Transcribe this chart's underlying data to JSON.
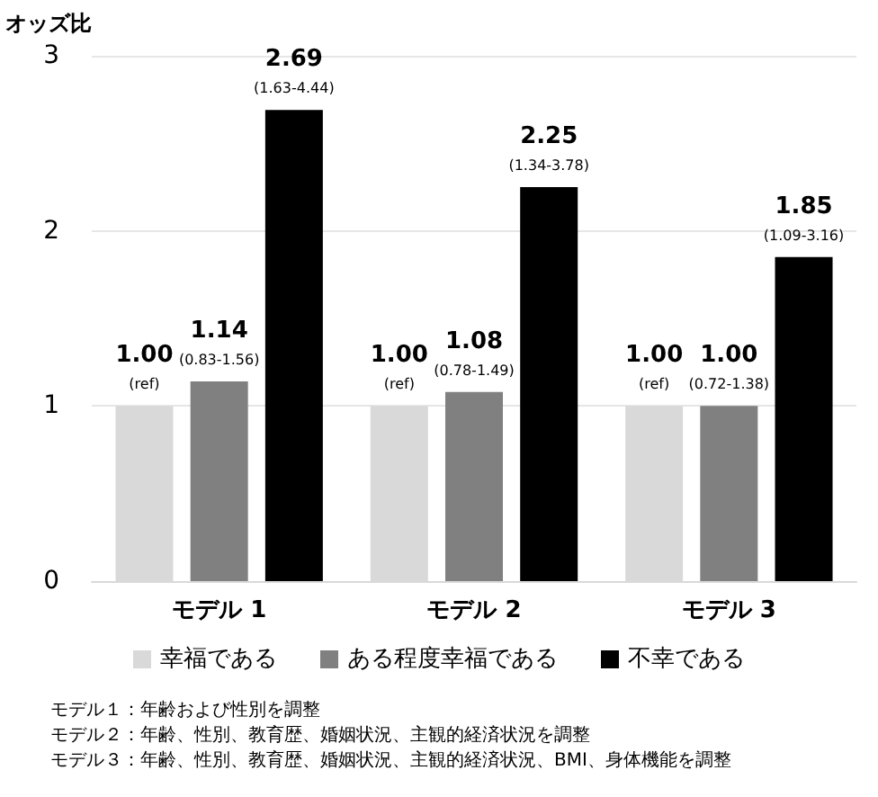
{
  "chart_data": {
    "type": "bar",
    "ylabel": "オッズ比",
    "categories": [
      "モデル 1",
      "モデル 2",
      "モデル 3"
    ],
    "series": [
      {
        "name": "幸福である",
        "color": "#d9d9d9",
        "values": [
          1.0,
          1.0,
          1.0
        ],
        "value_labels": [
          "1.00\n(ref)",
          "1.00\n(ref)",
          "1.00\n(ref)"
        ]
      },
      {
        "name": "ある程度幸福である",
        "color": "#808080",
        "values": [
          1.14,
          1.08,
          1.0
        ],
        "value_labels": [
          "1.14\n(0.83-1.56)",
          "1.08\n(0.78-1.49)",
          "1.00\n(0.72-1.38)"
        ]
      },
      {
        "name": "不幸である",
        "color": "#000000",
        "values": [
          2.69,
          2.25,
          1.85
        ],
        "value_labels": [
          "2.69\n(1.63-4.44)",
          "2.25\n(1.34-3.78)",
          "1.85\n(1.09-3.16)"
        ]
      }
    ],
    "ylim": [
      0,
      3
    ],
    "yticks": [
      0,
      1,
      2,
      3
    ],
    "grid": "y",
    "legend": "bottom",
    "annotations": [
      "モデル１：年齢および性別を調整",
      "モデル２：年齢、性別、教育歴、婚姻状況、主観的経済状況を調整",
      "モデル３：年齢、性別、教育歴、婚姻状況、主観的経済状況、BMI、身体機能を調整"
    ]
  }
}
